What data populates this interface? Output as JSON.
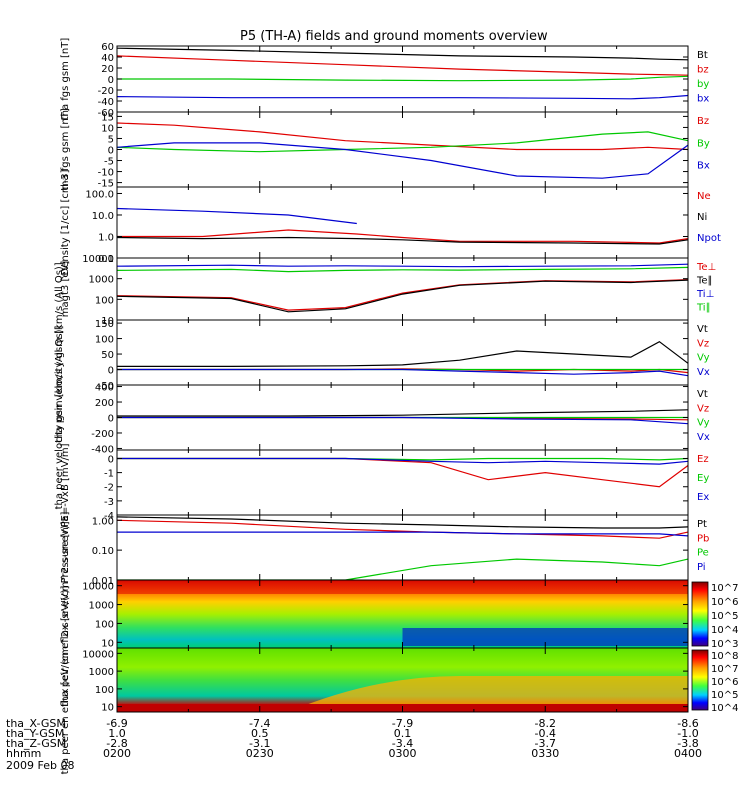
{
  "title": "P5 (TH-A) fields and ground moments overview",
  "colors": {
    "black": "#000000",
    "red": "#e00000",
    "green": "#00c800",
    "blue": "#0000d0"
  },
  "chart_data": [
    {
      "type": "line",
      "ylabel": "tha fgs gsm [nT]",
      "ylim": [
        -60,
        60
      ],
      "yticks": [
        {
          "v": 60,
          "t": "60"
        },
        {
          "v": 40,
          "t": "40"
        },
        {
          "v": 20,
          "t": "20"
        },
        {
          "v": 0,
          "t": "0"
        },
        {
          "v": -20,
          "t": "-20"
        },
        {
          "v": -40,
          "t": "-40"
        },
        {
          "v": -60,
          "t": "-60"
        }
      ],
      "x": [
        0,
        0.2,
        0.4,
        0.6,
        0.8,
        0.9,
        0.95,
        1
      ],
      "series": [
        {
          "name": "Bt",
          "color": "black",
          "values": [
            56,
            52,
            47,
            42,
            40,
            38,
            36,
            35
          ]
        },
        {
          "name": "bz",
          "color": "red",
          "values": [
            42,
            34,
            26,
            18,
            12,
            9,
            8,
            7
          ]
        },
        {
          "name": "by",
          "color": "green",
          "values": [
            0,
            0,
            -2,
            -3,
            -2,
            0,
            3,
            5
          ]
        },
        {
          "name": "bx",
          "color": "blue",
          "values": [
            -32,
            -34,
            -34,
            -34,
            -35,
            -36,
            -34,
            -30
          ]
        }
      ]
    },
    {
      "type": "line",
      "ylabel": "tha fgs gsm [nT]",
      "ylim": [
        -17,
        17
      ],
      "yticks": [
        {
          "v": 15,
          "t": "15"
        },
        {
          "v": 10,
          "t": "10"
        },
        {
          "v": 5,
          "t": "5"
        },
        {
          "v": 0,
          "t": "0"
        },
        {
          "v": -5,
          "t": "-5"
        },
        {
          "v": -10,
          "t": "-10"
        },
        {
          "v": -15,
          "t": "-15"
        }
      ],
      "x": [
        0,
        0.1,
        0.25,
        0.4,
        0.55,
        0.7,
        0.85,
        0.93,
        1
      ],
      "series": [
        {
          "name": "Bz",
          "color": "red",
          "values": [
            12,
            11,
            8,
            4,
            2,
            0,
            0,
            1,
            0
          ]
        },
        {
          "name": "By",
          "color": "green",
          "values": [
            1,
            0,
            -1,
            0,
            1,
            3,
            7,
            8,
            4
          ]
        },
        {
          "name": "Bx",
          "color": "blue",
          "values": [
            1,
            3,
            3,
            0,
            -5,
            -12,
            -13,
            -11,
            2
          ]
        }
      ]
    },
    {
      "type": "line",
      "scale": "log",
      "ylabel": "Density [1/cc] [cm-3]",
      "ylim": [
        0.1,
        200
      ],
      "yticks": [
        {
          "v": 100,
          "t": "100.0"
        },
        {
          "v": 10,
          "t": "10.0"
        },
        {
          "v": 1,
          "t": "1.0"
        },
        {
          "v": 0.1,
          "t": "0.1"
        }
      ],
      "x": [
        0,
        0.15,
        0.3,
        0.42,
        0.5,
        0.6,
        0.8,
        0.95,
        1
      ],
      "series": [
        {
          "name": "Ne",
          "color": "red",
          "values": [
            1,
            1,
            2,
            1.3,
            0.9,
            0.6,
            0.6,
            0.5,
            0.8
          ]
        },
        {
          "name": "Ni",
          "color": "black",
          "values": [
            0.9,
            0.8,
            0.9,
            0.8,
            0.7,
            0.55,
            0.5,
            0.45,
            0.7
          ]
        },
        {
          "name": "Npot",
          "color": "blue",
          "values": [
            20,
            15,
            10,
            4,
            null,
            null,
            null,
            null,
            null
          ]
        }
      ]
    },
    {
      "type": "line",
      "scale": "log",
      "ylabel": "magt3 [eV]",
      "ylim": [
        10,
        10000
      ],
      "yticks": [
        {
          "v": 10000,
          "t": "10000"
        },
        {
          "v": 1000,
          "t": "1000"
        },
        {
          "v": 100,
          "t": "100"
        },
        {
          "v": 10,
          "t": "10"
        }
      ],
      "x": [
        0,
        0.2,
        0.3,
        0.4,
        0.5,
        0.6,
        0.75,
        0.9,
        1
      ],
      "series": [
        {
          "name": "Te⊥",
          "color": "red",
          "values": [
            150,
            120,
            30,
            40,
            200,
            500,
            800,
            700,
            900
          ]
        },
        {
          "name": "Te∥",
          "color": "black",
          "values": [
            140,
            110,
            25,
            35,
            180,
            480,
            750,
            650,
            850
          ]
        },
        {
          "name": "Ti⊥",
          "color": "blue",
          "values": [
            4000,
            4500,
            4000,
            4200,
            4000,
            3800,
            4000,
            4200,
            5000
          ]
        },
        {
          "name": "Ti∥",
          "color": "green",
          "values": [
            2500,
            2800,
            2200,
            2500,
            2700,
            2600,
            2800,
            3000,
            3500
          ]
        }
      ]
    },
    {
      "type": "line",
      "ylabel": "tha peir velocity gsm [km/s (All Qs)]",
      "ylim": [
        -50,
        160
      ],
      "yticks": [
        {
          "v": 150,
          "t": "150"
        },
        {
          "v": 100,
          "t": "100"
        },
        {
          "v": 50,
          "t": "50"
        },
        {
          "v": 0,
          "t": "0"
        },
        {
          "v": -50,
          "t": "-50"
        }
      ],
      "x": [
        0,
        0.2,
        0.4,
        0.5,
        0.6,
        0.7,
        0.8,
        0.9,
        0.95,
        1
      ],
      "series": [
        {
          "name": "Vt",
          "color": "black",
          "values": [
            10,
            10,
            12,
            15,
            30,
            60,
            50,
            40,
            90,
            20
          ]
        },
        {
          "name": "Vz",
          "color": "red",
          "values": [
            0,
            0,
            0,
            2,
            0,
            -5,
            0,
            -5,
            0,
            -10
          ]
        },
        {
          "name": "Vy",
          "color": "green",
          "values": [
            0,
            0,
            0,
            0,
            0,
            0,
            0,
            0,
            0,
            0
          ]
        },
        {
          "name": "Vx",
          "color": "blue",
          "values": [
            0,
            0,
            0,
            0,
            -5,
            -10,
            -15,
            -10,
            -5,
            -20
          ]
        }
      ]
    },
    {
      "type": "line",
      "ylabel": "tha peer velocity gsm [km/s (All Qs)]",
      "ylim": [
        -420,
        420
      ],
      "yticks": [
        {
          "v": 400,
          "t": "400"
        },
        {
          "v": 200,
          "t": "200"
        },
        {
          "v": 0,
          "t": "0"
        },
        {
          "v": -200,
          "t": "-200"
        },
        {
          "v": -400,
          "t": "-400"
        }
      ],
      "x": [
        0,
        0.3,
        0.5,
        0.7,
        0.9,
        1
      ],
      "series": [
        {
          "name": "Vt",
          "color": "black",
          "values": [
            20,
            20,
            30,
            60,
            80,
            100
          ]
        },
        {
          "name": "Vz",
          "color": "red",
          "values": [
            0,
            0,
            0,
            -10,
            -20,
            -30
          ]
        },
        {
          "name": "Vy",
          "color": "green",
          "values": [
            0,
            0,
            0,
            0,
            0,
            0
          ]
        },
        {
          "name": "Vx",
          "color": "blue",
          "values": [
            0,
            0,
            0,
            -20,
            -30,
            -80
          ]
        }
      ]
    },
    {
      "type": "line",
      "ylabel": "E=-VxB [mV/m]",
      "ylim": [
        -4,
        0.6
      ],
      "yticks": [
        {
          "v": 0,
          "t": "0"
        },
        {
          "v": -1,
          "t": "-1"
        },
        {
          "v": -2,
          "t": "-2"
        },
        {
          "v": -3,
          "t": "-3"
        },
        {
          "v": -4,
          "t": "-4"
        }
      ],
      "x": [
        0,
        0.2,
        0.4,
        0.55,
        0.65,
        0.75,
        0.85,
        0.95,
        1
      ],
      "series": [
        {
          "name": "Ez",
          "color": "red",
          "values": [
            0,
            0,
            0,
            -0.3,
            -1.5,
            -1,
            -1.5,
            -2,
            -0.5
          ]
        },
        {
          "name": "Ey",
          "color": "green",
          "values": [
            0,
            0,
            0,
            -0.1,
            0,
            0,
            0,
            -0.1,
            0
          ]
        },
        {
          "name": "Ex",
          "color": "blue",
          "values": [
            0,
            0,
            0,
            -0.2,
            -0.3,
            -0.2,
            -0.3,
            -0.4,
            -0.2
          ]
        }
      ]
    },
    {
      "type": "line",
      "scale": "log",
      "ylabel": "Pressure [nPa]",
      "ylim": [
        0.01,
        1.5
      ],
      "yticks": [
        {
          "v": 1,
          "t": "1.00"
        },
        {
          "v": 0.1,
          "t": "0.10"
        },
        {
          "v": 0.01,
          "t": "0.01"
        }
      ],
      "x": [
        0,
        0.2,
        0.4,
        0.55,
        0.7,
        0.85,
        0.95,
        1
      ],
      "series": [
        {
          "name": "Pt",
          "color": "black",
          "values": [
            1.3,
            1.1,
            0.8,
            0.7,
            0.6,
            0.55,
            0.55,
            0.6
          ]
        },
        {
          "name": "Pb",
          "color": "red",
          "values": [
            1.0,
            0.8,
            0.5,
            0.4,
            0.35,
            0.3,
            0.25,
            0.4
          ]
        },
        {
          "name": "Pe",
          "color": "green",
          "values": [
            0.01,
            0.01,
            0.01,
            0.03,
            0.05,
            0.04,
            0.03,
            0.05
          ]
        },
        {
          "name": "Pi",
          "color": "blue",
          "values": [
            0.4,
            0.4,
            0.4,
            0.4,
            0.35,
            0.35,
            0.35,
            0.3
          ]
        }
      ]
    },
    {
      "type": "heatmap",
      "ylabel": "tha peir en eflux [eV/(cm^2-s-sr-eV)]",
      "scale": "log",
      "ylim": [
        5,
        20000
      ],
      "yticks": [
        {
          "v": 10000,
          "t": "10000"
        },
        {
          "v": 1000,
          "t": "1000"
        },
        {
          "v": 100,
          "t": "100"
        },
        {
          "v": 10,
          "t": "10"
        }
      ],
      "colorbar": [
        "10^7",
        "10^6",
        "10^5",
        "10^4",
        "10^3"
      ]
    },
    {
      "type": "heatmap",
      "ylabel": "tha peer en eflux [eV/(cm^2-s-sr-eV)]",
      "scale": "log",
      "ylim": [
        5,
        20000
      ],
      "yticks": [
        {
          "v": 10000,
          "t": "10000"
        },
        {
          "v": 1000,
          "t": "1000"
        },
        {
          "v": 100,
          "t": "100"
        },
        {
          "v": 10,
          "t": "10"
        }
      ],
      "colorbar": [
        "10^8",
        "10^7",
        "10^6",
        "10^5",
        "10^4"
      ]
    }
  ],
  "footer": {
    "rows": [
      {
        "label": "tha_X-GSM",
        "values": [
          "-6.9",
          "-7.4",
          "-7.9",
          "-8.2",
          "-8.6"
        ]
      },
      {
        "label": "tha_Y-GSM",
        "values": [
          "1.0",
          "0.5",
          "0.1",
          "-0.4",
          "-1.0"
        ]
      },
      {
        "label": "tha_Z-GSM",
        "values": [
          "-2.8",
          "-3.1",
          "-3.4",
          "-3.7",
          "-3.8"
        ]
      },
      {
        "label": "hhmm",
        "values": [
          "0200",
          "0230",
          "0300",
          "0330",
          "0400"
        ]
      }
    ],
    "date": "2009 Feb 08"
  }
}
